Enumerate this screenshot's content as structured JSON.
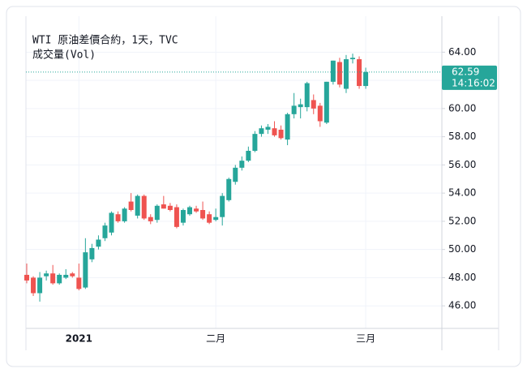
{
  "chart_data": {
    "type": "candlestick",
    "title": "WTI 原油差價合約，1天，TVC",
    "subtitle": "成交量(Vol)",
    "categories": [
      null,
      null,
      null,
      null,
      null,
      null,
      null,
      null,
      "2021",
      null,
      null,
      null,
      null,
      null,
      null,
      null,
      null,
      null,
      null,
      null,
      null,
      null,
      null,
      null,
      null,
      null,
      null,
      null,
      null,
      "二月",
      null,
      null,
      null,
      null,
      null,
      null,
      null,
      null,
      null,
      null,
      null,
      null,
      null,
      null,
      null,
      null,
      null,
      null,
      null,
      null,
      null,
      null,
      "三月"
    ],
    "open": [
      48.2,
      48.0,
      46.9,
      48.1,
      48.3,
      47.6,
      48.0,
      48.3,
      48.0,
      47.3,
      49.3,
      50.2,
      50.8,
      51.2,
      52.5,
      52.0,
      53.4,
      52.4,
      53.8,
      52.3,
      52.1,
      53.2,
      53.1,
      53.0,
      51.9,
      52.5,
      52.9,
      52.8,
      52.5,
      52.1,
      52.3,
      53.5,
      54.8,
      55.8,
      56.3,
      57.0,
      58.2,
      58.5,
      58.6,
      58.5,
      57.8,
      59.6,
      60.1,
      60.1,
      60.6,
      60.2,
      59.0,
      61.9,
      63.3,
      61.4,
      63.5,
      63.5,
      61.6
    ],
    "high": [
      49.0,
      48.1,
      48.4,
      48.5,
      48.9,
      48.3,
      48.6,
      48.4,
      49.0,
      50.8,
      50.4,
      51.0,
      51.9,
      52.7,
      52.7,
      53.0,
      54.0,
      53.9,
      53.9,
      52.5,
      53.2,
      53.8,
      53.3,
      53.2,
      52.9,
      53.1,
      53.1,
      53.4,
      52.7,
      52.9,
      54.0,
      55.1,
      56.0,
      56.6,
      57.3,
      58.4,
      58.8,
      58.9,
      59.1,
      58.8,
      59.7,
      61.1,
      60.7,
      61.9,
      61.0,
      60.4,
      61.9,
      63.4,
      63.6,
      63.8,
      63.9,
      63.7,
      62.9
    ],
    "low": [
      47.6,
      46.7,
      46.3,
      47.8,
      47.5,
      47.5,
      47.9,
      48.0,
      47.1,
      47.2,
      49.1,
      50.0,
      50.6,
      51.0,
      51.9,
      51.9,
      52.7,
      52.2,
      52.1,
      51.8,
      51.9,
      52.9,
      52.7,
      51.5,
      51.7,
      52.4,
      52.6,
      52.1,
      51.8,
      52.0,
      51.7,
      53.4,
      54.6,
      55.6,
      56.2,
      56.9,
      58.0,
      58.2,
      58.0,
      57.8,
      57.4,
      59.3,
      59.3,
      59.8,
      59.6,
      58.7,
      58.9,
      61.7,
      61.5,
      61.1,
      63.2,
      61.4,
      61.4
    ],
    "close": [
      47.8,
      46.9,
      48.0,
      48.3,
      47.6,
      48.2,
      48.2,
      48.1,
      47.2,
      49.8,
      50.1,
      50.7,
      51.7,
      52.6,
      52.0,
      52.9,
      52.8,
      53.8,
      52.2,
      52.0,
      53.1,
      52.9,
      52.8,
      51.6,
      52.8,
      53.0,
      52.7,
      52.2,
      51.9,
      52.3,
      53.8,
      55.0,
      55.8,
      56.3,
      57.0,
      58.2,
      58.6,
      58.7,
      58.1,
      57.9,
      59.6,
      60.2,
      60.3,
      61.8,
      60.0,
      59.1,
      61.9,
      63.4,
      61.7,
      63.5,
      63.6,
      61.6,
      62.59
    ],
    "up_color": "#26a69a",
    "down_color": "#ef5350",
    "ylim": [
      44.4,
      65.4
    ],
    "yticks": [
      {
        "value": 46,
        "label": "46.00"
      },
      {
        "value": 48,
        "label": "48.00"
      },
      {
        "value": 50,
        "label": "50.00"
      },
      {
        "value": 52,
        "label": "52.00"
      },
      {
        "value": 54,
        "label": "54.00"
      },
      {
        "value": 56,
        "label": "56.00"
      },
      {
        "value": 58,
        "label": "58.00"
      },
      {
        "value": 60,
        "label": "60.00"
      },
      {
        "value": 62,
        "label": "62.00"
      },
      {
        "value": 64,
        "label": "64.00"
      }
    ],
    "grid": true,
    "last_price": {
      "value": 62.59,
      "label": "62.59"
    },
    "last_time": "14:16:02"
  }
}
